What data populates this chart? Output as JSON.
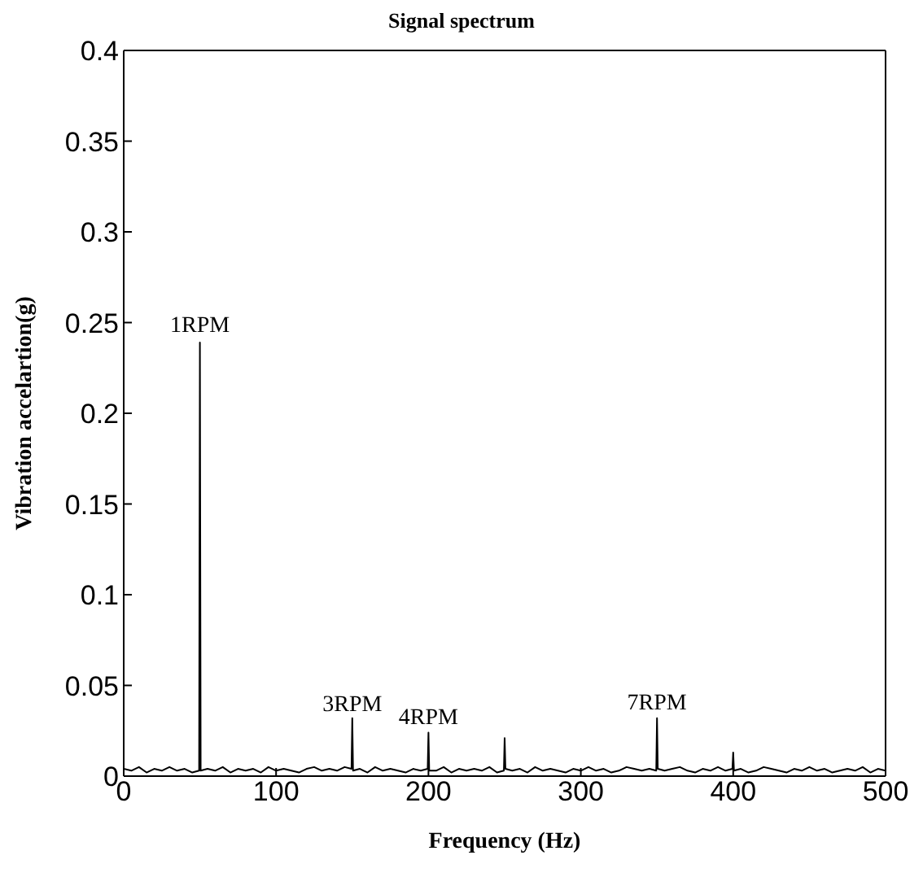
{
  "chart_data": {
    "type": "line",
    "title": "Signal spectrum",
    "xlabel": "Frequency (Hz)",
    "ylabel": "Vibration accelartion(g)",
    "x": [
      0,
      5,
      10,
      15,
      20,
      25,
      30,
      35,
      40,
      45,
      49.5,
      50,
      50.5,
      55,
      60,
      65,
      70,
      75,
      80,
      85,
      90,
      95,
      100,
      105,
      110,
      115,
      120,
      125,
      130,
      135,
      140,
      145,
      149.5,
      150,
      150.5,
      155,
      160,
      165,
      170,
      175,
      180,
      185,
      190,
      195,
      199.5,
      200,
      200.5,
      205,
      210,
      215,
      220,
      225,
      230,
      235,
      240,
      245,
      249.5,
      250,
      250.5,
      255,
      260,
      265,
      270,
      275,
      280,
      285,
      290,
      295,
      300,
      305,
      310,
      315,
      320,
      325,
      330,
      335,
      340,
      345,
      349.5,
      350,
      350.5,
      355,
      360,
      365,
      370,
      375,
      380,
      385,
      390,
      395,
      399.5,
      400,
      400.5,
      405,
      410,
      415,
      420,
      425,
      430,
      435,
      440,
      445,
      450,
      455,
      460,
      465,
      470,
      475,
      480,
      485,
      490,
      495,
      500
    ],
    "series": [
      {
        "color": "#000000",
        "values": [
          0.004,
          0.003,
          0.005,
          0.002,
          0.004,
          0.003,
          0.005,
          0.003,
          0.004,
          0.002,
          0.003,
          0.239,
          0.003,
          0.004,
          0.003,
          0.005,
          0.002,
          0.004,
          0.003,
          0.004,
          0.002,
          0.005,
          0.003,
          0.004,
          0.003,
          0.002,
          0.004,
          0.005,
          0.003,
          0.004,
          0.003,
          0.005,
          0.004,
          0.032,
          0.003,
          0.004,
          0.002,
          0.005,
          0.003,
          0.004,
          0.003,
          0.002,
          0.004,
          0.003,
          0.004,
          0.024,
          0.003,
          0.003,
          0.005,
          0.002,
          0.004,
          0.003,
          0.004,
          0.003,
          0.005,
          0.002,
          0.003,
          0.021,
          0.004,
          0.003,
          0.004,
          0.002,
          0.005,
          0.003,
          0.004,
          0.003,
          0.002,
          0.004,
          0.003,
          0.005,
          0.003,
          0.004,
          0.002,
          0.003,
          0.005,
          0.004,
          0.003,
          0.004,
          0.003,
          0.032,
          0.004,
          0.003,
          0.004,
          0.005,
          0.003,
          0.002,
          0.004,
          0.003,
          0.005,
          0.003,
          0.004,
          0.013,
          0.003,
          0.004,
          0.002,
          0.003,
          0.005,
          0.004,
          0.003,
          0.002,
          0.004,
          0.003,
          0.005,
          0.003,
          0.004,
          0.002,
          0.003,
          0.004,
          0.003,
          0.005,
          0.002,
          0.004,
          0.003
        ]
      }
    ],
    "xlim": [
      0,
      500
    ],
    "xticks": [
      0,
      100,
      200,
      300,
      400,
      500
    ],
    "ylim": [
      0,
      0.4
    ],
    "yticks": [
      0,
      0.05,
      0.1,
      0.15,
      0.2,
      0.25,
      0.3,
      0.35,
      0.4
    ],
    "grid": false,
    "legend": false,
    "marker": "none",
    "line_style": "solid",
    "annotations": [
      {
        "text": "1RPM",
        "x": 50,
        "y": 0.243
      },
      {
        "text": "3RPM",
        "x": 150,
        "y": 0.034
      },
      {
        "text": "4RPM",
        "x": 200,
        "y": 0.027
      },
      {
        "text": "7RPM",
        "x": 350,
        "y": 0.035
      }
    ]
  }
}
